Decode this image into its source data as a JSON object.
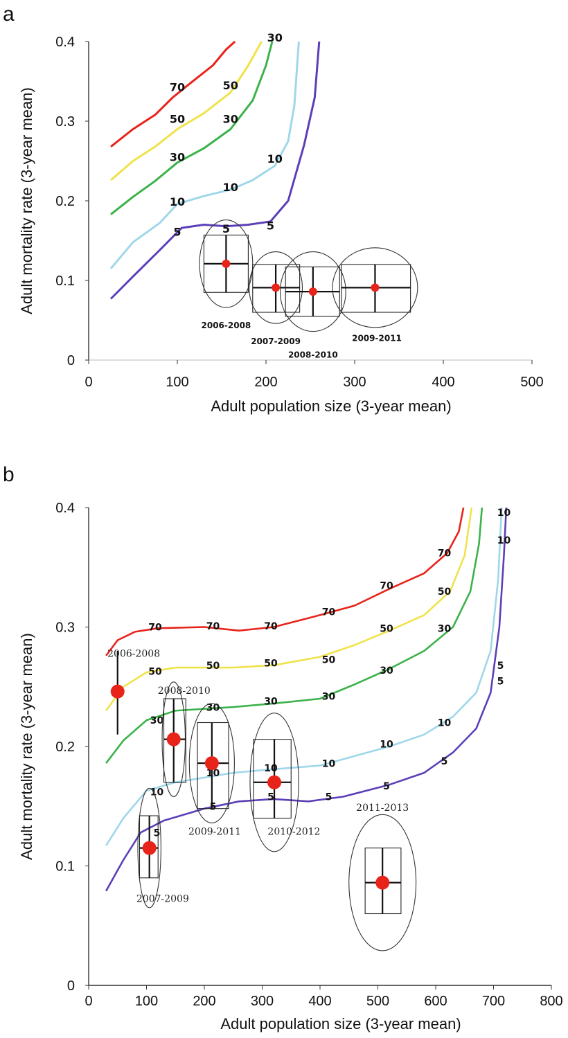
{
  "chart_data": [
    {
      "panel": "a",
      "type": "line",
      "xlabel": "Adult population size (3-year mean)",
      "ylabel": "Adult mortality rate (3-year mean)",
      "xlim": [
        0,
        500
      ],
      "ylim": [
        0,
        0.4
      ],
      "xticks": [
        0,
        100,
        200,
        300,
        400,
        500
      ],
      "yticks": [
        0,
        0.1,
        0.2,
        0.3,
        0.4
      ],
      "ytick_labels": [
        "0",
        "0.1",
        "0.2",
        "0.3",
        "0.4"
      ],
      "series": [
        {
          "name": "70",
          "color": "#e8231a",
          "labels_at": [
            [
              100,
              0.338
            ]
          ],
          "points": [
            [
              25,
              0.268
            ],
            [
              50,
              0.29
            ],
            [
              75,
              0.308
            ],
            [
              95,
              0.33
            ],
            [
              115,
              0.348
            ],
            [
              140,
              0.37
            ],
            [
              155,
              0.39
            ],
            [
              165,
              0.4
            ]
          ]
        },
        {
          "name": "50",
          "color": "#f0e24a",
          "labels_at": [
            [
              100,
              0.298
            ],
            [
              160,
              0.34
            ]
          ],
          "points": [
            [
              25,
              0.226
            ],
            [
              50,
              0.25
            ],
            [
              75,
              0.268
            ],
            [
              100,
              0.29
            ],
            [
              130,
              0.31
            ],
            [
              160,
              0.336
            ],
            [
              180,
              0.37
            ],
            [
              195,
              0.4
            ]
          ]
        },
        {
          "name": "30",
          "color": "#3bb24a",
          "labels_at": [
            [
              100,
              0.25
            ],
            [
              160,
              0.298
            ],
            [
              210,
              0.4
            ]
          ],
          "points": [
            [
              25,
              0.183
            ],
            [
              50,
              0.205
            ],
            [
              75,
              0.225
            ],
            [
              100,
              0.248
            ],
            [
              130,
              0.266
            ],
            [
              160,
              0.29
            ],
            [
              185,
              0.326
            ],
            [
              200,
              0.37
            ],
            [
              207,
              0.4
            ]
          ]
        },
        {
          "name": "10",
          "color": "#9fd7ea",
          "labels_at": [
            [
              100,
              0.194
            ],
            [
              160,
              0.212
            ],
            [
              210,
              0.248
            ]
          ],
          "points": [
            [
              25,
              0.115
            ],
            [
              50,
              0.148
            ],
            [
              80,
              0.172
            ],
            [
              100,
              0.196
            ],
            [
              130,
              0.206
            ],
            [
              160,
              0.214
            ],
            [
              185,
              0.226
            ],
            [
              210,
              0.244
            ],
            [
              225,
              0.275
            ],
            [
              232,
              0.32
            ],
            [
              237,
              0.4
            ]
          ]
        },
        {
          "name": "5",
          "color": "#5c3fb8",
          "labels_at": [
            [
              100,
              0.156
            ],
            [
              155,
              0.16
            ],
            [
              205,
              0.164
            ]
          ],
          "points": [
            [
              25,
              0.077
            ],
            [
              50,
              0.105
            ],
            [
              80,
              0.138
            ],
            [
              105,
              0.166
            ],
            [
              130,
              0.17
            ],
            [
              155,
              0.168
            ],
            [
              180,
              0.17
            ],
            [
              205,
              0.174
            ],
            [
              225,
              0.2
            ],
            [
              243,
              0.27
            ],
            [
              255,
              0.33
            ],
            [
              260,
              0.4
            ]
          ]
        }
      ],
      "estimates": [
        {
          "label": "2006-2008",
          "x": 155,
          "y": 0.121,
          "x_range": [
            130,
            180
          ],
          "y_range": [
            0.085,
            0.157
          ],
          "ellipse": {
            "cx": 155,
            "cy": 0.121,
            "rx": 30,
            "ry": 0.055
          },
          "label_at": [
            155,
            0.04
          ]
        },
        {
          "label": "2007-2009",
          "x": 211,
          "y": 0.091,
          "x_range": [
            185,
            238
          ],
          "y_range": [
            0.06,
            0.12
          ],
          "ellipse": {
            "cx": 211,
            "cy": 0.091,
            "rx": 30,
            "ry": 0.045
          },
          "label_at": [
            211,
            0.02
          ]
        },
        {
          "label": "2008-2010",
          "x": 253,
          "y": 0.086,
          "x_range": [
            222,
            283
          ],
          "y_range": [
            0.055,
            0.117
          ],
          "ellipse": {
            "cx": 253,
            "cy": 0.086,
            "rx": 37,
            "ry": 0.05
          },
          "label_at": [
            253,
            0.003
          ]
        },
        {
          "label": "2009-2011",
          "x": 323,
          "y": 0.091,
          "x_range": [
            285,
            363
          ],
          "y_range": [
            0.06,
            0.12
          ],
          "ellipse": {
            "cx": 323,
            "cy": 0.091,
            "rx": 48,
            "ry": 0.05
          },
          "label_at": [
            325,
            0.024
          ]
        }
      ]
    },
    {
      "panel": "b",
      "type": "line",
      "xlabel": "Adult population size (3-year mean)",
      "ylabel": "Adult mortality rate (3-year mean)",
      "xlim": [
        0,
        800
      ],
      "ylim": [
        0,
        0.4
      ],
      "xticks": [
        0,
        100,
        200,
        300,
        400,
        500,
        600,
        700,
        800
      ],
      "yticks": [
        0,
        0.1,
        0.2,
        0.3,
        0.4
      ],
      "ytick_labels": [
        "0",
        "0.1",
        "0.2",
        "0.3",
        "0.4"
      ],
      "series": [
        {
          "name": "70",
          "color": "#e8231a",
          "labels_at": [
            [
              115,
              0.297
            ],
            [
              215,
              0.298
            ],
            [
              315,
              0.298
            ],
            [
              415,
              0.31
            ],
            [
              515,
              0.332
            ],
            [
              615,
              0.359
            ]
          ],
          "points": [
            [
              30,
              0.276
            ],
            [
              50,
              0.289
            ],
            [
              80,
              0.296
            ],
            [
              120,
              0.299
            ],
            [
              200,
              0.3
            ],
            [
              260,
              0.297
            ],
            [
              320,
              0.3
            ],
            [
              400,
              0.31
            ],
            [
              460,
              0.318
            ],
            [
              520,
              0.332
            ],
            [
              580,
              0.345
            ],
            [
              620,
              0.362
            ],
            [
              640,
              0.38
            ],
            [
              648,
              0.4
            ]
          ]
        },
        {
          "name": "50",
          "color": "#f0e24a",
          "labels_at": [
            [
              115,
              0.26
            ],
            [
              215,
              0.265
            ],
            [
              315,
              0.267
            ],
            [
              415,
              0.27
            ],
            [
              515,
              0.296
            ],
            [
              615,
              0.327
            ]
          ],
          "points": [
            [
              30,
              0.23
            ],
            [
              60,
              0.25
            ],
            [
              100,
              0.262
            ],
            [
              150,
              0.266
            ],
            [
              250,
              0.266
            ],
            [
              320,
              0.268
            ],
            [
              400,
              0.275
            ],
            [
              460,
              0.285
            ],
            [
              520,
              0.297
            ],
            [
              580,
              0.31
            ],
            [
              625,
              0.33
            ],
            [
              650,
              0.36
            ],
            [
              662,
              0.4
            ]
          ]
        },
        {
          "name": "30",
          "color": "#3bb24a",
          "labels_at": [
            [
              118,
              0.219
            ],
            [
              215,
              0.23
            ],
            [
              315,
              0.235
            ],
            [
              415,
              0.239
            ],
            [
              515,
              0.261
            ],
            [
              615,
              0.296
            ]
          ],
          "points": [
            [
              30,
              0.186
            ],
            [
              60,
              0.205
            ],
            [
              100,
              0.222
            ],
            [
              150,
              0.23
            ],
            [
              250,
              0.233
            ],
            [
              320,
              0.236
            ],
            [
              400,
              0.24
            ],
            [
              460,
              0.252
            ],
            [
              520,
              0.265
            ],
            [
              580,
              0.28
            ],
            [
              630,
              0.3
            ],
            [
              660,
              0.33
            ],
            [
              675,
              0.37
            ],
            [
              680,
              0.4
            ]
          ]
        },
        {
          "name": "10",
          "color": "#9fd7ea",
          "labels_at": [
            [
              118,
              0.159
            ],
            [
              215,
              0.175
            ],
            [
              315,
              0.179
            ],
            [
              415,
              0.183
            ],
            [
              515,
              0.199
            ],
            [
              615,
              0.217
            ],
            [
              718,
              0.37
            ],
            [
              718,
              0.393
            ]
          ],
          "points": [
            [
              30,
              0.117
            ],
            [
              60,
              0.14
            ],
            [
              100,
              0.163
            ],
            [
              150,
              0.17
            ],
            [
              250,
              0.178
            ],
            [
              320,
              0.181
            ],
            [
              400,
              0.184
            ],
            [
              460,
              0.192
            ],
            [
              520,
              0.2
            ],
            [
              580,
              0.21
            ],
            [
              630,
              0.225
            ],
            [
              670,
              0.245
            ],
            [
              695,
              0.28
            ],
            [
              708,
              0.34
            ],
            [
              714,
              0.4
            ]
          ]
        },
        {
          "name": "5",
          "color": "#5c3fb8",
          "labels_at": [
            [
              118,
              0.125
            ],
            [
              215,
              0.147
            ],
            [
              315,
              0.155
            ],
            [
              415,
              0.155
            ],
            [
              515,
              0.164
            ],
            [
              615,
              0.185
            ],
            [
              712,
              0.265
            ],
            [
              712,
              0.252
            ]
          ],
          "points": [
            [
              30,
              0.079
            ],
            [
              60,
              0.105
            ],
            [
              90,
              0.128
            ],
            [
              130,
              0.138
            ],
            [
              200,
              0.148
            ],
            [
              260,
              0.154
            ],
            [
              320,
              0.156
            ],
            [
              380,
              0.154
            ],
            [
              440,
              0.158
            ],
            [
              520,
              0.168
            ],
            [
              580,
              0.178
            ],
            [
              630,
              0.195
            ],
            [
              670,
              0.215
            ],
            [
              695,
              0.245
            ],
            [
              710,
              0.3
            ],
            [
              718,
              0.36
            ],
            [
              722,
              0.4
            ]
          ]
        }
      ],
      "estimates": [
        {
          "label": "2006-2008",
          "x": 50,
          "y": 0.246,
          "x_range": null,
          "y_range": [
            0.21,
            0.28
          ],
          "ellipse": null,
          "label_at": [
            78,
            0.275
          ]
        },
        {
          "label": "2008-2010",
          "x": 147,
          "y": 0.206,
          "x_range": [
            130,
            168
          ],
          "y_range": [
            0.17,
            0.24
          ],
          "ellipse": {
            "cx": 147,
            "cy": 0.206,
            "rx": 20,
            "ry": 0.048
          },
          "label_at": [
            165,
            0.244
          ]
        },
        {
          "label": "2009-2011",
          "x": 213,
          "y": 0.186,
          "x_range": [
            188,
            242
          ],
          "y_range": [
            0.148,
            0.22
          ],
          "ellipse": {
            "cx": 213,
            "cy": 0.186,
            "rx": 39,
            "ry": 0.05
          },
          "label_at": [
            218,
            0.126
          ]
        },
        {
          "label": "2010-2012",
          "x": 321,
          "y": 0.17,
          "x_range": [
            285,
            350
          ],
          "y_range": [
            0.14,
            0.206
          ],
          "ellipse": {
            "cx": 321,
            "cy": 0.17,
            "rx": 42,
            "ry": 0.058
          },
          "label_at": [
            355,
            0.126
          ]
        },
        {
          "label": "2007-2009",
          "x": 105,
          "y": 0.115,
          "x_range": [
            88,
            120
          ],
          "y_range": [
            0.09,
            0.142
          ],
          "ellipse": {
            "cx": 105,
            "cy": 0.115,
            "rx": 20,
            "ry": 0.05
          },
          "label_at": [
            128,
            0.07
          ]
        },
        {
          "label": "2011-2013",
          "x": 508,
          "y": 0.086,
          "x_range": [
            478,
            540
          ],
          "y_range": [
            0.06,
            0.115
          ],
          "ellipse": {
            "cx": 508,
            "cy": 0.086,
            "rx": 58,
            "ry": 0.057
          },
          "label_at": [
            508,
            0.146
          ]
        }
      ]
    }
  ]
}
